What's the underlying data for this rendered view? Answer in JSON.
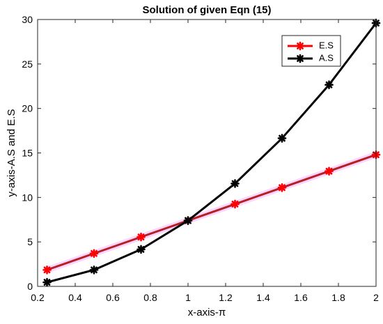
{
  "chart_data": {
    "type": "line",
    "title": "Solution of given Eqn (15)",
    "xlabel": "x-axis-π",
    "ylabel": "y-axis-A.S and E.S",
    "xlim": [
      0.2,
      2
    ],
    "ylim": [
      0,
      30
    ],
    "xticks": [
      0.2,
      0.4,
      0.6,
      0.8,
      1,
      1.2,
      1.4,
      1.6,
      1.8,
      2
    ],
    "xtick_labels": [
      "0.2",
      "0.4",
      "0.6",
      "0.8",
      "1",
      "1.2",
      "1.4",
      "1.6",
      "1.8",
      "2"
    ],
    "yticks": [
      0,
      5,
      10,
      15,
      20,
      25,
      30
    ],
    "ytick_labels": [
      "0",
      "5",
      "10",
      "15",
      "20",
      "25",
      "30"
    ],
    "grid": false,
    "legend_position": "top-right",
    "x": [
      0.25,
      0.5,
      0.75,
      1.0,
      1.25,
      1.5,
      1.75,
      2.0
    ],
    "series": [
      {
        "name": "E.S",
        "color": "#ff0000",
        "line_color": "#b22222",
        "marker": "asterisk",
        "values": [
          1.85,
          3.7,
          5.55,
          7.4,
          9.25,
          11.1,
          12.95,
          14.8
        ]
      },
      {
        "name": "A.S",
        "color": "#000000",
        "line_color": "#000000",
        "marker": "asterisk",
        "values": [
          0.46,
          1.85,
          4.16,
          7.4,
          11.56,
          16.65,
          22.66,
          29.6
        ]
      }
    ]
  }
}
